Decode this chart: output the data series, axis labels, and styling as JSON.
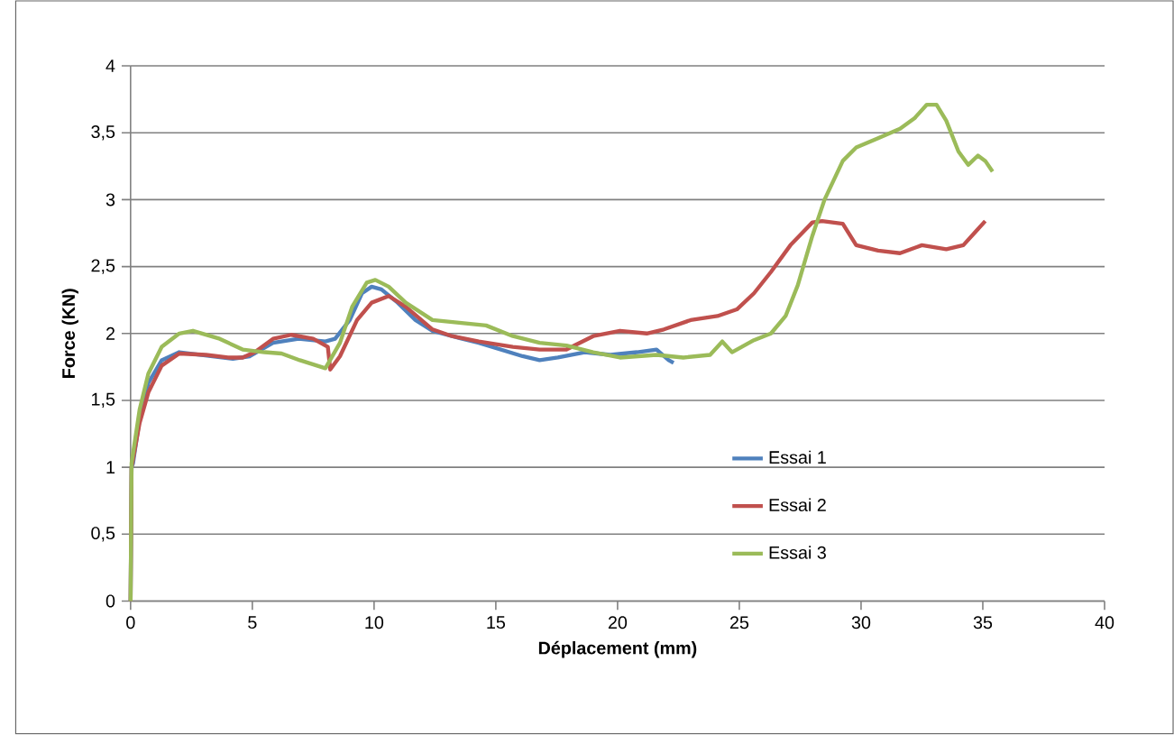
{
  "chart_data": {
    "type": "line",
    "xlabel": "Déplacement (mm)",
    "ylabel": "Force (KN)",
    "xlim": [
      0,
      40
    ],
    "xticks": [
      0,
      5,
      10,
      15,
      20,
      25,
      30,
      35,
      40
    ],
    "ylim": [
      0,
      4
    ],
    "yticks": [
      0,
      {
        "value": 0.5,
        "label": "0,5"
      },
      1,
      {
        "value": 1.5,
        "label": "1,5"
      },
      2,
      {
        "value": 2.5,
        "label": "2,5"
      },
      3,
      {
        "value": 3.5,
        "label": "3,5"
      },
      4
    ],
    "grid": "y",
    "legend": "bottom right",
    "marker": "none",
    "line_style": "solid",
    "series": [
      {
        "name": "Essai 1",
        "color": "#4f81bd",
        "x": [
          0,
          0.04,
          0.1,
          0.37,
          0.73,
          1.28,
          2.0,
          3.1,
          4.2,
          4.9,
          5.85,
          6.9,
          8.0,
          8.4,
          9.0,
          9.5,
          9.9,
          10.3,
          10.97,
          11.7,
          12.4,
          13.2,
          14.3,
          15.2,
          16.1,
          16.8,
          17.55,
          18.65,
          19.7,
          20.8,
          21.6,
          22.1,
          22.3
        ],
        "values": [
          0,
          1.0,
          1.03,
          1.36,
          1.63,
          1.8,
          1.86,
          null,
          1.81,
          1.83,
          1.93,
          1.96,
          1.94,
          1.96,
          2.1,
          2.3,
          2.35,
          2.33,
          2.23,
          2.1,
          2.02,
          1.98,
          1.93,
          1.88,
          1.83,
          1.8,
          1.82,
          1.86,
          1.84,
          1.86,
          1.88,
          1.8,
          1.78
        ]
      },
      {
        "name": "Essai 2",
        "color": "#c0504d",
        "x": [
          0,
          0.04,
          0.37,
          0.73,
          1.28,
          2.0,
          3.1,
          4.0,
          4.6,
          5.1,
          5.85,
          6.6,
          7.5,
          8.1,
          8.2,
          8.6,
          9.3,
          9.9,
          10.6,
          11.3,
          12.4,
          13.2,
          14.3,
          15.7,
          16.8,
          17.9,
          19.0,
          20.1,
          21.2,
          21.9,
          23.0,
          24.1,
          24.9,
          25.6,
          26.3,
          27.1,
          28.0,
          28.4,
          29.25,
          29.8,
          30.7,
          31.6,
          32.5,
          33.5,
          34.2,
          34.7,
          35.1
        ],
        "values": [
          0,
          1.0,
          1.33,
          1.56,
          1.76,
          1.85,
          1.84,
          1.82,
          1.82,
          1.86,
          1.96,
          1.99,
          1.96,
          1.9,
          1.73,
          1.83,
          2.1,
          2.23,
          2.28,
          2.2,
          2.03,
          1.98,
          1.94,
          1.9,
          1.88,
          1.88,
          1.98,
          2.02,
          2.0,
          2.03,
          2.1,
          2.13,
          2.18,
          2.3,
          2.46,
          2.66,
          2.83,
          2.84,
          2.82,
          2.66,
          2.62,
          2.6,
          2.66,
          2.63,
          2.66,
          2.76,
          2.84
        ]
      },
      {
        "name": "Essai 3",
        "color": "#9bbb59",
        "x": [
          0,
          0.04,
          0.37,
          0.73,
          1.28,
          2.0,
          2.56,
          3.66,
          4.6,
          5.5,
          6.2,
          6.95,
          8.0,
          8.6,
          9.1,
          9.7,
          10.05,
          10.6,
          11.3,
          12.4,
          13.5,
          14.6,
          15.7,
          16.8,
          17.9,
          19.0,
          20.1,
          21.6,
          22.7,
          23.8,
          24.3,
          24.7,
          25.6,
          26.3,
          26.9,
          27.4,
          28.0,
          28.5,
          29.25,
          29.8,
          30.7,
          31.6,
          32.2,
          32.7,
          33.1,
          33.5,
          34.0,
          34.4,
          34.8,
          35.1,
          35.4
        ],
        "values": [
          0,
          1.03,
          1.43,
          1.7,
          1.9,
          2.0,
          2.02,
          1.96,
          1.88,
          1.86,
          1.85,
          1.8,
          1.74,
          1.93,
          2.2,
          2.38,
          2.4,
          2.35,
          2.23,
          2.1,
          2.08,
          2.06,
          1.98,
          1.93,
          1.91,
          1.86,
          1.82,
          1.84,
          1.82,
          1.84,
          1.94,
          1.86,
          1.95,
          2.0,
          2.13,
          2.36,
          2.73,
          3.0,
          3.29,
          3.39,
          3.46,
          3.53,
          3.61,
          3.71,
          3.71,
          3.59,
          3.36,
          3.26,
          3.33,
          3.29,
          3.21
        ]
      }
    ]
  }
}
